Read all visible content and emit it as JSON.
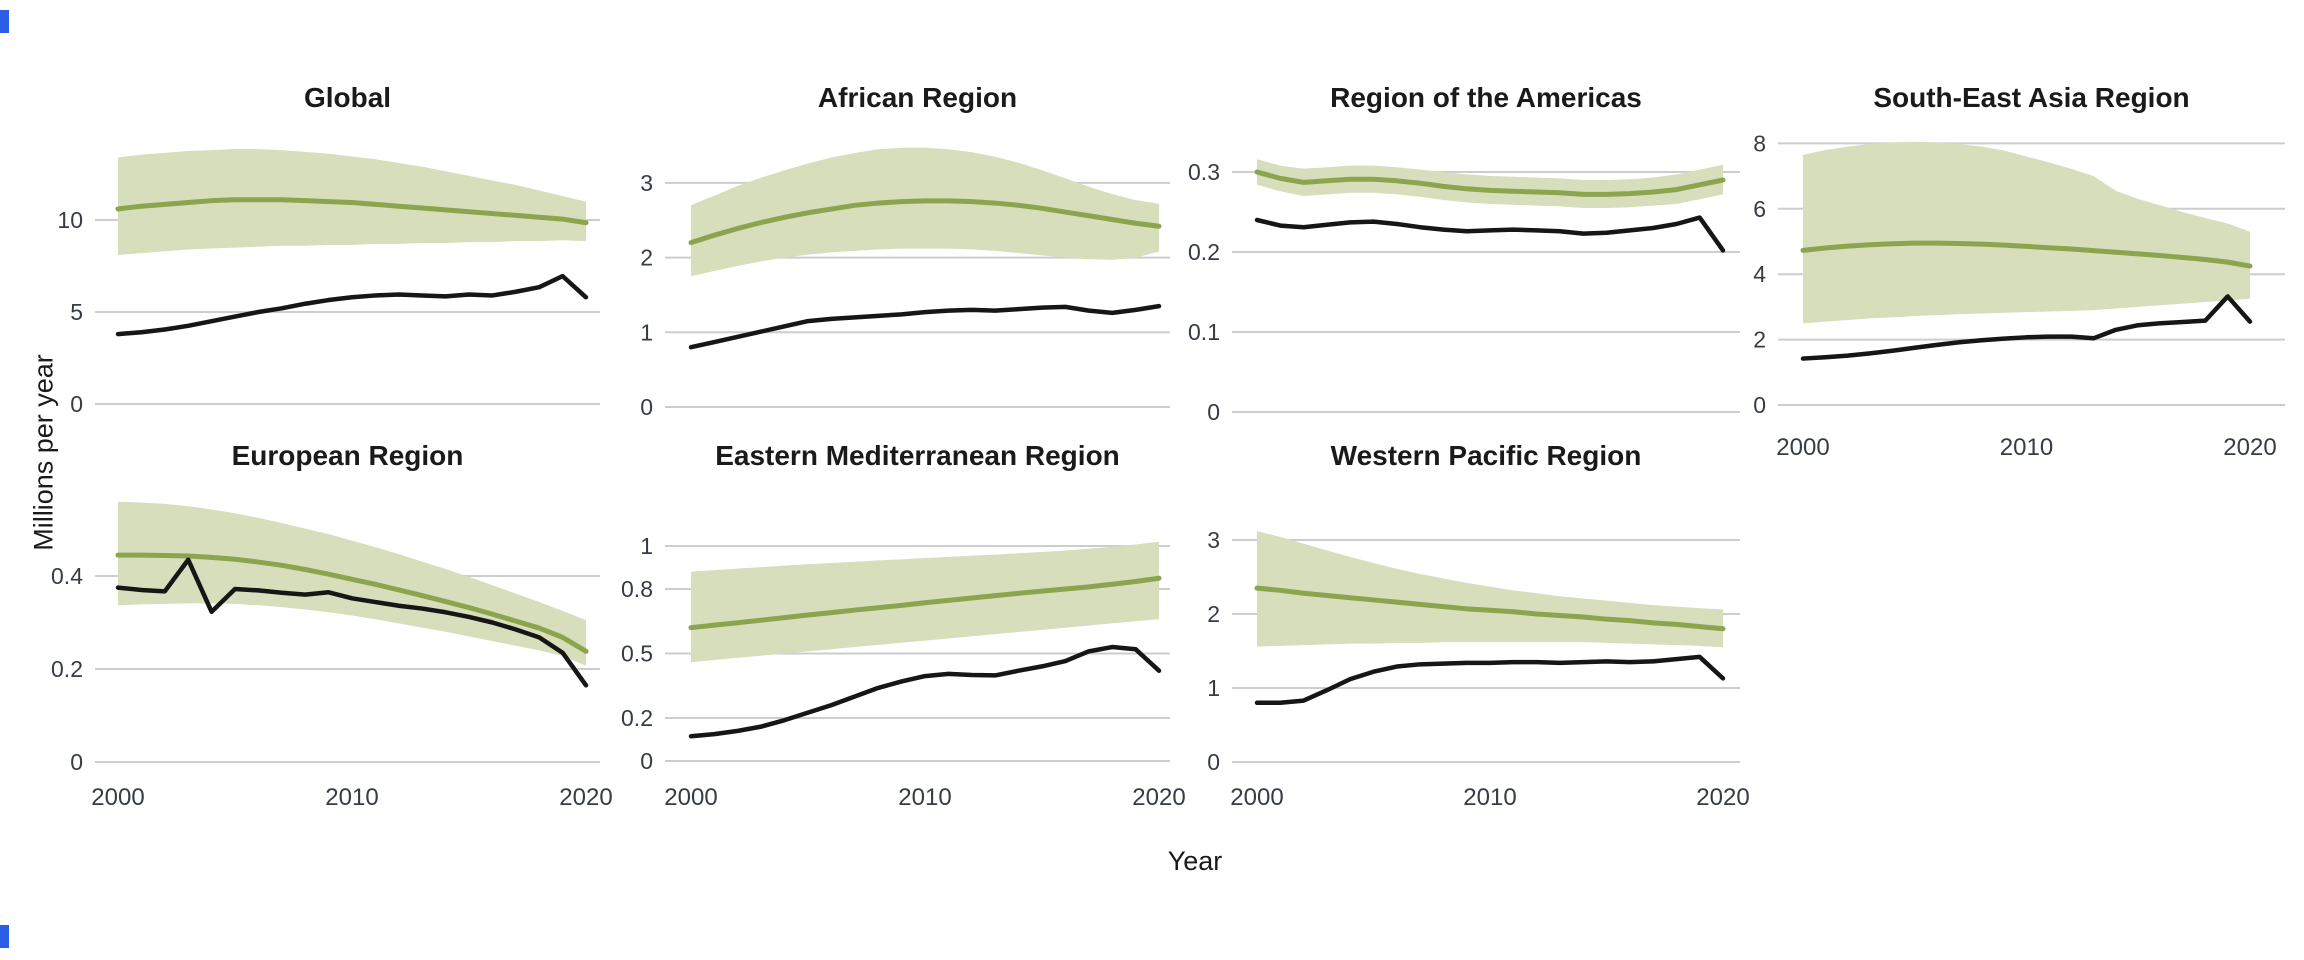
{
  "figure": {
    "xlabel": "Year",
    "ylabel": "Millions per year"
  },
  "colors": {
    "estimate_line": "#8BA44D",
    "uncertainty_band": "#D6DEBC",
    "observed_line": "#161616",
    "gridline": "#CDCDCD",
    "tick_text": "#353C45",
    "title_text": "#1A1A1A",
    "artifact_blue": "#2B5CE6"
  },
  "chart_data": {
    "type": "line",
    "x_label": "Year",
    "y_label": "Millions per year",
    "years": [
      2000,
      2001,
      2002,
      2003,
      2004,
      2005,
      2006,
      2007,
      2008,
      2009,
      2010,
      2011,
      2012,
      2013,
      2014,
      2015,
      2016,
      2017,
      2018,
      2019,
      2020
    ],
    "x_tick_labels": [
      "2000",
      "2010",
      "2020"
    ],
    "x_tick_years": [
      2000,
      2010,
      2020
    ],
    "legend": "none",
    "grid": "horizontal-only",
    "series_meaning": {
      "estimate": "green central estimate line",
      "upper": "upper edge of shaded uncertainty band",
      "lower": "lower edge of shaded uncertainty band",
      "observed": "black observed/reported line"
    },
    "panels": [
      {
        "title": "Global",
        "row": 1,
        "col": 1,
        "ylim": [
          0,
          15
        ],
        "y_ticks": [
          0,
          5,
          10
        ],
        "y_tick_labels": [
          "0",
          "5",
          "10"
        ],
        "show_x_labels": false,
        "estimate": [
          10.6,
          10.75,
          10.85,
          10.95,
          11.05,
          11.1,
          11.1,
          11.1,
          11.05,
          11.0,
          10.95,
          10.85,
          10.75,
          10.65,
          10.55,
          10.45,
          10.35,
          10.25,
          10.15,
          10.05,
          9.85
        ],
        "upper": [
          13.4,
          13.55,
          13.65,
          13.75,
          13.8,
          13.85,
          13.85,
          13.8,
          13.7,
          13.6,
          13.45,
          13.3,
          13.1,
          12.9,
          12.65,
          12.4,
          12.15,
          11.9,
          11.6,
          11.3,
          11.0
        ],
        "lower": [
          8.1,
          8.2,
          8.3,
          8.4,
          8.45,
          8.5,
          8.55,
          8.6,
          8.6,
          8.65,
          8.65,
          8.7,
          8.7,
          8.75,
          8.75,
          8.8,
          8.8,
          8.85,
          8.85,
          8.9,
          8.85
        ],
        "observed": [
          3.8,
          3.9,
          4.05,
          4.25,
          4.5,
          4.75,
          5.0,
          5.2,
          5.45,
          5.65,
          5.8,
          5.9,
          5.95,
          5.9,
          5.85,
          5.95,
          5.9,
          6.1,
          6.35,
          6.95,
          5.8
        ]
      },
      {
        "title": "African Region",
        "row": 1,
        "col": 2,
        "ylim": [
          0,
          3.5
        ],
        "y_ticks": [
          0,
          1,
          2,
          3
        ],
        "y_tick_labels": [
          "0",
          "1",
          "2",
          "3"
        ],
        "show_x_labels": false,
        "estimate": [
          2.2,
          2.3,
          2.39,
          2.47,
          2.54,
          2.6,
          2.65,
          2.7,
          2.73,
          2.75,
          2.76,
          2.76,
          2.75,
          2.73,
          2.7,
          2.66,
          2.61,
          2.56,
          2.51,
          2.46,
          2.42
        ],
        "upper": [
          2.7,
          2.83,
          2.96,
          3.07,
          3.17,
          3.26,
          3.34,
          3.4,
          3.45,
          3.47,
          3.47,
          3.45,
          3.41,
          3.35,
          3.27,
          3.17,
          3.06,
          2.95,
          2.85,
          2.77,
          2.72
        ],
        "lower": [
          1.75,
          1.82,
          1.89,
          1.95,
          2.0,
          2.04,
          2.07,
          2.09,
          2.11,
          2.12,
          2.12,
          2.12,
          2.11,
          2.09,
          2.06,
          2.03,
          2.0,
          1.98,
          1.97,
          2.0,
          2.08
        ],
        "observed": [
          0.8,
          0.87,
          0.94,
          1.01,
          1.08,
          1.15,
          1.18,
          1.2,
          1.22,
          1.24,
          1.27,
          1.29,
          1.3,
          1.29,
          1.31,
          1.33,
          1.34,
          1.29,
          1.26,
          1.3,
          1.35
        ]
      },
      {
        "title": "Region of the Americas",
        "row": 1,
        "col": 3,
        "ylim": [
          0,
          0.32
        ],
        "y_ticks": [
          0,
          0.1,
          0.2,
          0.3
        ],
        "y_tick_labels": [
          "0",
          "0.1",
          "0.2",
          "0.3"
        ],
        "show_x_labels": false,
        "estimate": [
          0.3,
          0.292,
          0.287,
          0.289,
          0.291,
          0.291,
          0.289,
          0.286,
          0.282,
          0.279,
          0.277,
          0.276,
          0.275,
          0.274,
          0.272,
          0.272,
          0.273,
          0.275,
          0.278,
          0.284,
          0.29
        ],
        "upper": [
          0.316,
          0.308,
          0.304,
          0.306,
          0.308,
          0.308,
          0.306,
          0.303,
          0.3,
          0.297,
          0.295,
          0.294,
          0.293,
          0.292,
          0.29,
          0.29,
          0.291,
          0.293,
          0.297,
          0.303,
          0.309
        ],
        "lower": [
          0.284,
          0.276,
          0.27,
          0.272,
          0.274,
          0.274,
          0.272,
          0.269,
          0.265,
          0.262,
          0.26,
          0.259,
          0.258,
          0.257,
          0.255,
          0.255,
          0.256,
          0.258,
          0.26,
          0.266,
          0.272
        ],
        "observed": [
          0.24,
          0.233,
          0.231,
          0.234,
          0.237,
          0.238,
          0.235,
          0.231,
          0.228,
          0.226,
          0.227,
          0.228,
          0.227,
          0.226,
          0.223,
          0.224,
          0.227,
          0.23,
          0.235,
          0.243,
          0.202
        ]
      },
      {
        "title": "South-East Asia Region",
        "row": 1,
        "col": 4,
        "ylim": [
          0,
          8.6
        ],
        "y_ticks": [
          0,
          2,
          4,
          6,
          8
        ],
        "y_tick_labels": [
          "0",
          "2",
          "4",
          "6",
          "8"
        ],
        "show_x_labels": true,
        "estimate": [
          4.73,
          4.8,
          4.86,
          4.9,
          4.93,
          4.95,
          4.95,
          4.94,
          4.92,
          4.89,
          4.85,
          4.81,
          4.77,
          4.72,
          4.67,
          4.62,
          4.57,
          4.51,
          4.45,
          4.37,
          4.25
        ],
        "upper": [
          7.65,
          7.8,
          7.9,
          7.98,
          8.03,
          8.05,
          8.03,
          7.98,
          7.9,
          7.78,
          7.6,
          7.42,
          7.22,
          7.0,
          6.55,
          6.3,
          6.1,
          5.9,
          5.72,
          5.55,
          5.3
        ],
        "lower": [
          2.5,
          2.55,
          2.6,
          2.65,
          2.68,
          2.72,
          2.75,
          2.78,
          2.8,
          2.82,
          2.84,
          2.86,
          2.88,
          2.9,
          2.95,
          3.0,
          3.05,
          3.1,
          3.15,
          3.2,
          3.25
        ],
        "observed": [
          1.42,
          1.46,
          1.51,
          1.58,
          1.66,
          1.75,
          1.84,
          1.92,
          1.98,
          2.03,
          2.07,
          2.09,
          2.09,
          2.04,
          2.3,
          2.44,
          2.5,
          2.54,
          2.58,
          3.32,
          2.55
        ]
      },
      {
        "title": "European Region",
        "row": 2,
        "col": 1,
        "ylim": [
          0,
          0.58
        ],
        "y_ticks": [
          0,
          0.2,
          0.4
        ],
        "y_tick_labels": [
          "0",
          "0.2",
          "0.4"
        ],
        "show_x_labels": true,
        "estimate": [
          0.445,
          0.445,
          0.444,
          0.443,
          0.44,
          0.436,
          0.43,
          0.423,
          0.414,
          0.404,
          0.393,
          0.382,
          0.37,
          0.358,
          0.345,
          0.332,
          0.318,
          0.303,
          0.288,
          0.268,
          0.238
        ],
        "upper": [
          0.56,
          0.558,
          0.555,
          0.55,
          0.543,
          0.535,
          0.525,
          0.514,
          0.502,
          0.49,
          0.476,
          0.462,
          0.447,
          0.431,
          0.415,
          0.398,
          0.38,
          0.362,
          0.344,
          0.325,
          0.305
        ],
        "lower": [
          0.337,
          0.339,
          0.34,
          0.341,
          0.341,
          0.34,
          0.337,
          0.333,
          0.328,
          0.322,
          0.315,
          0.307,
          0.298,
          0.289,
          0.28,
          0.27,
          0.26,
          0.25,
          0.24,
          0.228,
          0.207
        ],
        "observed": [
          0.375,
          0.37,
          0.367,
          0.435,
          0.323,
          0.372,
          0.369,
          0.364,
          0.36,
          0.365,
          0.352,
          0.344,
          0.336,
          0.33,
          0.322,
          0.312,
          0.3,
          0.285,
          0.268,
          0.235,
          0.165
        ]
      },
      {
        "title": "Eastern Mediterranean Region",
        "row": 2,
        "col": 2,
        "ylim": [
          0,
          1.05
        ],
        "y_ticks": [
          0,
          0.2,
          0.5,
          0.8,
          1
        ],
        "y_tick_labels": [
          "0",
          "0.2",
          "0.5",
          "0.8",
          "1"
        ],
        "show_x_labels": true,
        "estimate": [
          0.62,
          0.632,
          0.643,
          0.655,
          0.667,
          0.679,
          0.69,
          0.702,
          0.713,
          0.724,
          0.736,
          0.747,
          0.758,
          0.769,
          0.78,
          0.79,
          0.8,
          0.81,
          0.822,
          0.835,
          0.85
        ],
        "upper": [
          0.88,
          0.888,
          0.895,
          0.902,
          0.909,
          0.915,
          0.921,
          0.927,
          0.933,
          0.938,
          0.944,
          0.949,
          0.955,
          0.96,
          0.966,
          0.972,
          0.979,
          0.987,
          0.996,
          1.007,
          1.02
        ],
        "lower": [
          0.46,
          0.47,
          0.48,
          0.49,
          0.5,
          0.51,
          0.52,
          0.53,
          0.54,
          0.55,
          0.56,
          0.57,
          0.58,
          0.59,
          0.6,
          0.61,
          0.62,
          0.63,
          0.64,
          0.65,
          0.66
        ],
        "observed": [
          0.115,
          0.125,
          0.14,
          0.16,
          0.19,
          0.225,
          0.26,
          0.3,
          0.34,
          0.37,
          0.395,
          0.405,
          0.4,
          0.398,
          0.42,
          0.44,
          0.465,
          0.51,
          0.53,
          0.52,
          0.42
        ]
      },
      {
        "title": "Western Pacific Region",
        "row": 2,
        "col": 3,
        "ylim": [
          0,
          3.6
        ],
        "y_ticks": [
          0,
          1,
          2,
          3
        ],
        "y_tick_labels": [
          "0",
          "1",
          "2",
          "3"
        ],
        "show_x_labels": true,
        "estimate": [
          2.35,
          2.32,
          2.28,
          2.25,
          2.22,
          2.19,
          2.16,
          2.13,
          2.1,
          2.07,
          2.05,
          2.03,
          2.0,
          1.98,
          1.96,
          1.93,
          1.91,
          1.88,
          1.86,
          1.83,
          1.8
        ],
        "upper": [
          3.12,
          3.04,
          2.95,
          2.86,
          2.77,
          2.69,
          2.61,
          2.54,
          2.48,
          2.42,
          2.37,
          2.32,
          2.28,
          2.24,
          2.21,
          2.18,
          2.15,
          2.12,
          2.1,
          2.08,
          2.06
        ],
        "lower": [
          1.56,
          1.57,
          1.58,
          1.59,
          1.6,
          1.6,
          1.61,
          1.61,
          1.62,
          1.62,
          1.62,
          1.62,
          1.62,
          1.62,
          1.62,
          1.61,
          1.6,
          1.59,
          1.58,
          1.57,
          1.55
        ],
        "observed": [
          0.8,
          0.8,
          0.83,
          0.97,
          1.12,
          1.22,
          1.29,
          1.32,
          1.33,
          1.34,
          1.34,
          1.35,
          1.35,
          1.34,
          1.35,
          1.36,
          1.35,
          1.36,
          1.39,
          1.42,
          1.13
        ]
      }
    ]
  }
}
